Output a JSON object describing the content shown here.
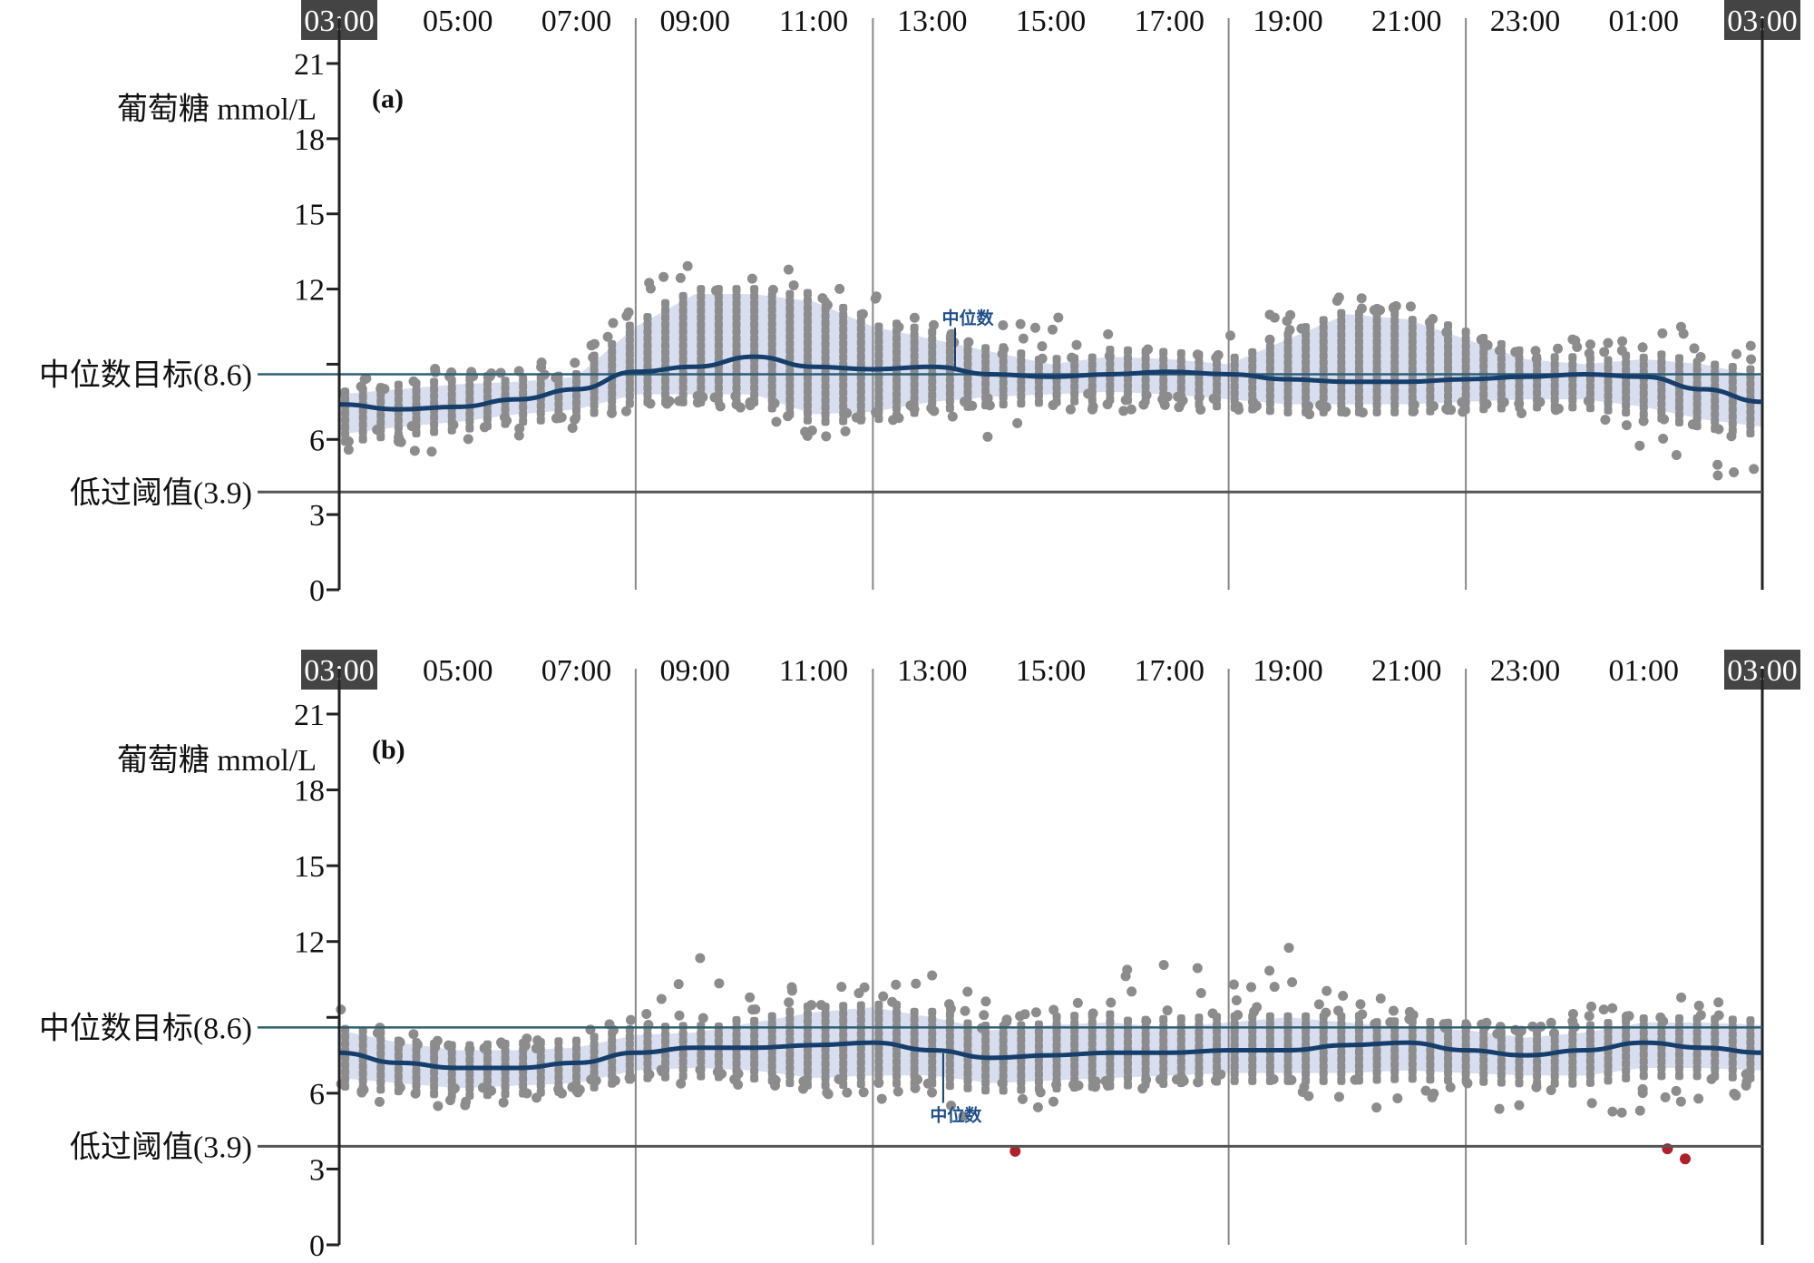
{
  "chart_data": [
    {
      "type": "scatter",
      "panel_label": "(a)",
      "ylabel": "葡萄糖 mmol/L",
      "ylim": [
        0,
        21
      ],
      "yticks": [
        0,
        3,
        6,
        9,
        12,
        15,
        18,
        21
      ],
      "ytick_labels": [
        "0",
        "3",
        "6",
        "",
        "12",
        "15",
        "18",
        "21"
      ],
      "xtick_labels": [
        "03:00",
        "05:00",
        "07:00",
        "09:00",
        "11:00",
        "13:00",
        "15:00",
        "17:00",
        "19:00",
        "21:00",
        "23:00",
        "01:00",
        "03:00"
      ],
      "highlighted_xticks": [
        0,
        12
      ],
      "vertical_gridlines_hours_from_start": [
        5,
        9,
        15,
        19
      ],
      "target_line": {
        "label": "中位数目标(8.6)",
        "value": 8.6
      },
      "low_line": {
        "label": "低过阈值(3.9)",
        "value": 3.9
      },
      "median_annotation": {
        "label": "中位数",
        "hour": 10.6,
        "value": 10.6,
        "side": "above"
      },
      "hours": [
        0,
        1,
        2,
        3,
        4,
        5,
        6,
        7,
        8,
        9,
        10,
        11,
        12,
        13,
        14,
        15,
        16,
        17,
        18,
        19,
        20,
        21,
        22,
        23,
        24
      ],
      "median": [
        7.4,
        7.2,
        7.3,
        7.6,
        8.0,
        8.7,
        8.9,
        9.3,
        8.9,
        8.8,
        8.9,
        8.6,
        8.5,
        8.6,
        8.7,
        8.6,
        8.4,
        8.3,
        8.3,
        8.4,
        8.5,
        8.6,
        8.5,
        8.0,
        7.5
      ],
      "band_upper": [
        7.8,
        8.0,
        8.2,
        8.3,
        8.5,
        10.5,
        11.8,
        11.8,
        11.5,
        10.5,
        10.0,
        9.5,
        9.0,
        9.3,
        9.2,
        9.0,
        10.0,
        11.0,
        10.8,
        10.0,
        9.2,
        9.0,
        9.2,
        9.0,
        8.5
      ],
      "band_lower": [
        6.2,
        6.5,
        6.7,
        7.0,
        7.2,
        7.8,
        7.8,
        7.8,
        7.0,
        7.1,
        7.5,
        7.7,
        7.8,
        7.9,
        7.8,
        7.6,
        7.4,
        7.4,
        7.4,
        7.5,
        7.6,
        7.6,
        7.3,
        6.8,
        6.5
      ],
      "scatter_high": [
        8.3,
        9.0,
        8.8,
        8.8,
        9.5,
        12.0,
        13.5,
        12.5,
        13.5,
        12.0,
        11.0,
        10.5,
        11.0,
        10.2,
        9.8,
        10.0,
        11.5,
        12.0,
        11.5,
        10.0,
        10.0,
        10.0,
        10.0,
        11.0,
        10.0
      ],
      "scatter_low": [
        5.5,
        5.5,
        5.5,
        6.0,
        6.3,
        7.2,
        7.5,
        7.0,
        6.0,
        6.5,
        7.0,
        6.0,
        6.5,
        7.0,
        7.2,
        7.0,
        7.0,
        7.0,
        7.0,
        7.0,
        7.0,
        7.0,
        5.5,
        4.3,
        4.5
      ],
      "low_points": [],
      "colors": {
        "dots": "#8c8c8c",
        "median": "#163e6b",
        "band": "#c9d3ea",
        "low": "#b0202a",
        "target": "#2f5f73"
      }
    },
    {
      "type": "scatter",
      "panel_label": "(b)",
      "ylabel": "葡萄糖 mmol/L",
      "ylim": [
        0,
        21
      ],
      "yticks": [
        0,
        3,
        6,
        9,
        12,
        15,
        18,
        21
      ],
      "ytick_labels": [
        "0",
        "3",
        "6",
        "",
        "12",
        "15",
        "18",
        "21"
      ],
      "xtick_labels": [
        "03:00",
        "05:00",
        "07:00",
        "09:00",
        "11:00",
        "13:00",
        "15:00",
        "17:00",
        "19:00",
        "21:00",
        "23:00",
        "01:00",
        "03:00"
      ],
      "highlighted_xticks": [
        0,
        12
      ],
      "vertical_gridlines_hours_from_start": [
        5,
        9,
        15,
        19
      ],
      "target_line": {
        "label": "中位数目标(8.6)",
        "value": 8.6
      },
      "low_line": {
        "label": "低过阈值(3.9)",
        "value": 3.9
      },
      "median_annotation": {
        "label": "中位数",
        "hour": 10.4,
        "value": 4.9,
        "side": "below"
      },
      "hours": [
        0,
        1,
        2,
        3,
        4,
        5,
        6,
        7,
        8,
        9,
        10,
        11,
        12,
        13,
        14,
        15,
        16,
        17,
        18,
        19,
        20,
        21,
        22,
        23,
        24
      ],
      "median": [
        7.6,
        7.2,
        7.0,
        7.0,
        7.2,
        7.6,
        7.8,
        7.8,
        7.9,
        8.0,
        7.7,
        7.4,
        7.5,
        7.6,
        7.6,
        7.7,
        7.7,
        7.9,
        8.0,
        7.7,
        7.5,
        7.7,
        8.0,
        7.8,
        7.6
      ],
      "band_upper": [
        8.5,
        8.0,
        7.7,
        7.7,
        7.8,
        8.3,
        8.4,
        8.8,
        9.2,
        9.4,
        9.0,
        8.5,
        8.7,
        8.8,
        8.6,
        8.8,
        9.0,
        8.8,
        8.6,
        8.5,
        8.2,
        8.4,
        8.8,
        8.8,
        8.7
      ],
      "band_lower": [
        6.6,
        6.4,
        6.2,
        6.3,
        6.4,
        6.9,
        7.0,
        6.9,
        6.6,
        6.7,
        6.7,
        6.4,
        6.5,
        6.6,
        6.7,
        6.8,
        6.8,
        6.8,
        6.9,
        6.8,
        6.7,
        6.7,
        7.0,
        7.0,
        6.9
      ],
      "scatter_high": [
        9.5,
        8.5,
        8.0,
        8.2,
        8.5,
        9.0,
        11.5,
        10.5,
        10.5,
        10.5,
        10.8,
        9.5,
        9.2,
        10.5,
        12.5,
        10.5,
        12.0,
        10.0,
        9.5,
        9.0,
        8.5,
        9.5,
        9.8,
        9.8,
        9.5
      ],
      "scatter_low": [
        6.0,
        5.5,
        5.3,
        5.5,
        6.0,
        6.5,
        6.3,
        6.2,
        6.0,
        5.8,
        5.5,
        4.5,
        5.5,
        6.0,
        6.2,
        6.3,
        5.5,
        5.5,
        5.0,
        5.5,
        5.0,
        5.2,
        5.0,
        5.5,
        6.0
      ],
      "low_points": [
        {
          "hour": 11.4,
          "value": 3.7
        },
        {
          "hour": 22.4,
          "value": 3.8
        },
        {
          "hour": 22.7,
          "value": 3.4
        }
      ],
      "colors": {
        "dots": "#8c8c8c",
        "median": "#163e6b",
        "band": "#c9d3ea",
        "low": "#b0202a",
        "target": "#2f5f73"
      }
    }
  ]
}
